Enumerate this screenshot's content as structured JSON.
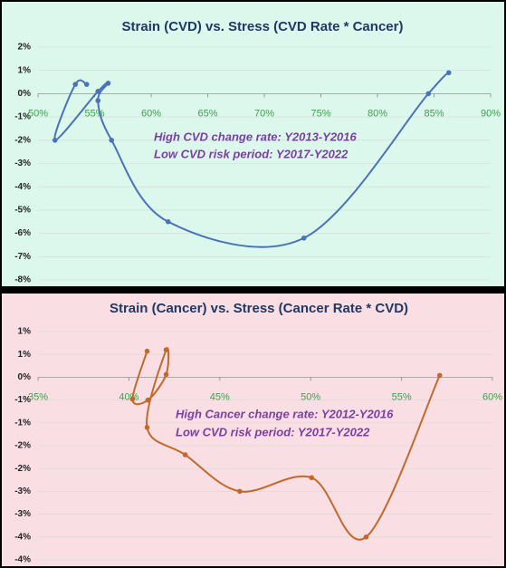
{
  "chart_data": [
    {
      "type": "line",
      "title": "Strain (CVD) vs. Stress (CVD Rate * Cancer)",
      "annotations": [
        "High CVD change rate:  Y2013-Y2016",
        "Low CVD risk period:  Y2017-Y2022"
      ],
      "x": [
        54.3,
        53.3,
        51.5,
        55.3,
        56.2,
        55.3,
        56.5,
        61.5,
        73.5,
        84.5,
        86.3
      ],
      "series": [
        {
          "name": "Strain (CVD)",
          "color": "#4a72b8",
          "values": [
            0.4,
            0.4,
            -2.0,
            0.1,
            0.45,
            -0.3,
            -2.0,
            -5.5,
            -6.2,
            0.0,
            0.9
          ]
        }
      ],
      "xlim": [
        50,
        90
      ],
      "xticks": [
        {
          "value": 50,
          "label": "50%"
        },
        {
          "value": 55,
          "label": "55%"
        },
        {
          "value": 60,
          "label": "60%"
        },
        {
          "value": 65,
          "label": "65%"
        },
        {
          "value": 70,
          "label": "70%"
        },
        {
          "value": 75,
          "label": "75%"
        },
        {
          "value": 80,
          "label": "80%"
        },
        {
          "value": 85,
          "label": "85%"
        },
        {
          "value": 90,
          "label": "90%"
        }
      ],
      "ylim": [
        -8,
        2
      ],
      "yticks": [
        {
          "value": 2,
          "label": "2%"
        },
        {
          "value": 1,
          "label": "1%"
        },
        {
          "value": 0,
          "label": "0%"
        },
        {
          "value": -1,
          "label": "-1%"
        },
        {
          "value": -2,
          "label": "-2%"
        },
        {
          "value": -3,
          "label": "-3%"
        },
        {
          "value": -4,
          "label": "-4%"
        },
        {
          "value": -5,
          "label": "-5%"
        },
        {
          "value": -6,
          "label": "-6%"
        },
        {
          "value": -7,
          "label": "-7%"
        },
        {
          "value": -8,
          "label": "-8%"
        }
      ],
      "background": "#dcf7ec"
    },
    {
      "type": "line",
      "title": "Strain (Cancer) vs. Stress (Cancer Rate * CVD)",
      "annotations": [
        "High Cancer change rate:  Y2012-Y2016",
        "Low CVD risk period:  Y2017-Y2022"
      ],
      "x": [
        41.0,
        40.2,
        41.05,
        42.05,
        42.05,
        41.0,
        43.1,
        46.1,
        50.05,
        53.05,
        57.1
      ],
      "series": [
        {
          "name": "Strain (Cancer)",
          "color": "#c0692a",
          "values": [
            0.57,
            -0.48,
            -0.5,
            0.06,
            0.6,
            -1.1,
            -1.7,
            -2.5,
            -2.2,
            -3.5,
            0.04
          ]
        }
      ],
      "xlim": [
        35,
        60
      ],
      "xticks": [
        {
          "value": 35,
          "label": "35%"
        },
        {
          "value": 40,
          "label": "40%"
        },
        {
          "value": 45,
          "label": "45%"
        },
        {
          "value": 50,
          "label": "50%"
        },
        {
          "value": 55,
          "label": "55%"
        },
        {
          "value": 60,
          "label": "60%"
        }
      ],
      "ylim": [
        -4,
        1
      ],
      "yticks": [
        {
          "value": 1,
          "label": "1%"
        },
        {
          "value": 0.5,
          "label": "1%"
        },
        {
          "value": 0,
          "label": "0%"
        },
        {
          "value": -0.5,
          "label": "-1%"
        },
        {
          "value": -1,
          "label": "-1%"
        },
        {
          "value": -1.5,
          "label": "-2%"
        },
        {
          "value": -2,
          "label": "-2%"
        },
        {
          "value": -2.5,
          "label": "-3%"
        },
        {
          "value": -3,
          "label": "-3%"
        },
        {
          "value": -3.5,
          "label": "-4%"
        },
        {
          "value": -4,
          "label": "-4%"
        }
      ],
      "background": "#f9dfe4"
    }
  ]
}
